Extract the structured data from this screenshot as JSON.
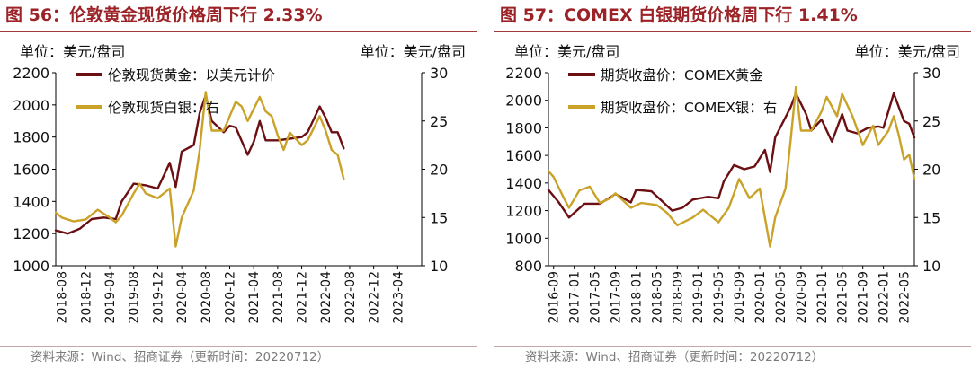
{
  "chart_data": [
    {
      "type": "line",
      "title": "图 56：伦敦黄金现货价格周下行 2.33%",
      "unit_left": "单位：美元/盘司",
      "unit_right": "单位：美元/盘司",
      "source": "资料来源：Wind、招商证券（更新时间：20220712）",
      "x_ticks": [
        "2018-08",
        "2018-12",
        "2019-04",
        "2019-08",
        "2019-12",
        "2020-04",
        "2020-08",
        "2020-12",
        "2021-04",
        "2021-08",
        "2021-12",
        "2022-04",
        "2022-08",
        "2022-12",
        "2023-04"
      ],
      "x_range": [
        "2018-07",
        "2023-08"
      ],
      "y_left": {
        "min": 1000,
        "max": 2200,
        "ticks": [
          1000,
          1200,
          1400,
          1600,
          1800,
          2000,
          2200
        ]
      },
      "y_right": {
        "min": 10,
        "max": 30,
        "ticks": [
          10,
          15,
          20,
          25,
          30
        ]
      },
      "grid": false,
      "legend_position": "top-left",
      "series": [
        {
          "name": "伦敦现货黄金：以美元计价",
          "axis": "left",
          "color": "#6b0f13",
          "points": [
            [
              "2018-07",
              1220
            ],
            [
              "2018-09",
              1200
            ],
            [
              "2018-11",
              1230
            ],
            [
              "2019-01",
              1290
            ],
            [
              "2019-03",
              1300
            ],
            [
              "2019-05",
              1290
            ],
            [
              "2019-06",
              1400
            ],
            [
              "2019-08",
              1510
            ],
            [
              "2019-10",
              1500
            ],
            [
              "2019-12",
              1480
            ],
            [
              "2020-01",
              1560
            ],
            [
              "2020-02",
              1640
            ],
            [
              "2020-03",
              1490
            ],
            [
              "2020-04",
              1710
            ],
            [
              "2020-06",
              1750
            ],
            [
              "2020-07",
              1950
            ],
            [
              "2020-08",
              2060
            ],
            [
              "2020-09",
              1900
            ],
            [
              "2020-11",
              1830
            ],
            [
              "2020-12",
              1870
            ],
            [
              "2021-01",
              1860
            ],
            [
              "2021-03",
              1690
            ],
            [
              "2021-04",
              1770
            ],
            [
              "2021-05",
              1900
            ],
            [
              "2021-06",
              1780
            ],
            [
              "2021-08",
              1780
            ],
            [
              "2021-10",
              1790
            ],
            [
              "2021-12",
              1800
            ],
            [
              "2022-01",
              1830
            ],
            [
              "2022-03",
              1990
            ],
            [
              "2022-04",
              1920
            ],
            [
              "2022-05",
              1830
            ],
            [
              "2022-06",
              1830
            ],
            [
              "2022-07",
              1730
            ]
          ]
        },
        {
          "name": "伦敦现货白银：右",
          "axis": "right",
          "color": "#c9a227",
          "points": [
            [
              "2018-07",
              15.5
            ],
            [
              "2018-08",
              15.0
            ],
            [
              "2018-10",
              14.6
            ],
            [
              "2018-12",
              14.8
            ],
            [
              "2019-02",
              15.8
            ],
            [
              "2019-04",
              15.0
            ],
            [
              "2019-05",
              14.5
            ],
            [
              "2019-06",
              15.2
            ],
            [
              "2019-08",
              17.5
            ],
            [
              "2019-09",
              18.5
            ],
            [
              "2019-10",
              17.5
            ],
            [
              "2019-12",
              17.0
            ],
            [
              "2020-02",
              18.0
            ],
            [
              "2020-03",
              12.0
            ],
            [
              "2020-04",
              15.0
            ],
            [
              "2020-06",
              17.8
            ],
            [
              "2020-07",
              22.0
            ],
            [
              "2020-08",
              28.0
            ],
            [
              "2020-09",
              24.0
            ],
            [
              "2020-11",
              24.0
            ],
            [
              "2020-12",
              25.5
            ],
            [
              "2021-01",
              27.0
            ],
            [
              "2021-02",
              26.5
            ],
            [
              "2021-03",
              25.0
            ],
            [
              "2021-05",
              27.5
            ],
            [
              "2021-06",
              26.0
            ],
            [
              "2021-07",
              25.5
            ],
            [
              "2021-08",
              23.5
            ],
            [
              "2021-09",
              22.0
            ],
            [
              "2021-10",
              23.8
            ],
            [
              "2021-12",
              22.5
            ],
            [
              "2022-01",
              23.0
            ],
            [
              "2022-03",
              25.5
            ],
            [
              "2022-04",
              24.0
            ],
            [
              "2022-05",
              22.0
            ],
            [
              "2022-06",
              21.5
            ],
            [
              "2022-07",
              19.0
            ]
          ]
        }
      ]
    },
    {
      "type": "line",
      "title": "图 57：COMEX 白银期货价格周下行 1.41%",
      "unit_left": "单位：美元/盘司",
      "unit_right": "单位：美元/盘司",
      "source": "资料来源：Wind、招商证券（更新时间：20220712）",
      "x_ticks": [
        "2016-09",
        "2017-01",
        "2017-05",
        "2017-09",
        "2018-01",
        "2018-05",
        "2018-09",
        "2019-01",
        "2019-05",
        "2019-09",
        "2020-01",
        "2020-05",
        "2020-09",
        "2021-01",
        "2021-05",
        "2021-09",
        "2022-01",
        "2022-05"
      ],
      "x_range": [
        "2016-08",
        "2022-07"
      ],
      "y_left": {
        "min": 800,
        "max": 2200,
        "ticks": [
          800,
          1000,
          1200,
          1400,
          1600,
          1800,
          2000,
          2200
        ]
      },
      "y_right": {
        "min": 10,
        "max": 30,
        "ticks": [
          10,
          15,
          20,
          25,
          30
        ]
      },
      "grid": false,
      "legend_position": "top-left",
      "series": [
        {
          "name": "期货收盘价：COMEX黄金",
          "axis": "left",
          "color": "#6b0f13",
          "points": [
            [
              "2016-08",
              1350
            ],
            [
              "2016-10",
              1260
            ],
            [
              "2016-12",
              1150
            ],
            [
              "2017-03",
              1250
            ],
            [
              "2017-06",
              1250
            ],
            [
              "2017-09",
              1320
            ],
            [
              "2017-12",
              1260
            ],
            [
              "2018-01",
              1350
            ],
            [
              "2018-04",
              1340
            ],
            [
              "2018-06",
              1270
            ],
            [
              "2018-08",
              1200
            ],
            [
              "2018-10",
              1220
            ],
            [
              "2018-12",
              1280
            ],
            [
              "2019-03",
              1300
            ],
            [
              "2019-05",
              1290
            ],
            [
              "2019-06",
              1410
            ],
            [
              "2019-08",
              1530
            ],
            [
              "2019-10",
              1500
            ],
            [
              "2019-12",
              1520
            ],
            [
              "2020-02",
              1640
            ],
            [
              "2020-03",
              1480
            ],
            [
              "2020-04",
              1730
            ],
            [
              "2020-07",
              1950
            ],
            [
              "2020-08",
              2050
            ],
            [
              "2020-10",
              1900
            ],
            [
              "2020-11",
              1780
            ],
            [
              "2021-01",
              1860
            ],
            [
              "2021-03",
              1700
            ],
            [
              "2021-05",
              1900
            ],
            [
              "2021-06",
              1780
            ],
            [
              "2021-08",
              1760
            ],
            [
              "2021-10",
              1800
            ],
            [
              "2021-12",
              1810
            ],
            [
              "2022-01",
              1800
            ],
            [
              "2022-03",
              2050
            ],
            [
              "2022-04",
              1950
            ],
            [
              "2022-05",
              1850
            ],
            [
              "2022-06",
              1830
            ],
            [
              "2022-07",
              1730
            ]
          ]
        },
        {
          "name": "期货收盘价：COMEX银：右",
          "axis": "right",
          "color": "#c9a227",
          "points": [
            [
              "2016-08",
              19.8
            ],
            [
              "2016-09",
              19.2
            ],
            [
              "2016-11",
              17.0
            ],
            [
              "2016-12",
              16.0
            ],
            [
              "2017-02",
              17.8
            ],
            [
              "2017-04",
              18.2
            ],
            [
              "2017-06",
              16.5
            ],
            [
              "2017-08",
              17.0
            ],
            [
              "2017-09",
              17.5
            ],
            [
              "2017-12",
              16.0
            ],
            [
              "2018-02",
              16.5
            ],
            [
              "2018-05",
              16.3
            ],
            [
              "2018-07",
              15.5
            ],
            [
              "2018-09",
              14.2
            ],
            [
              "2018-12",
              15.0
            ],
            [
              "2019-02",
              15.8
            ],
            [
              "2019-05",
              14.5
            ],
            [
              "2019-07",
              16.0
            ],
            [
              "2019-09",
              19.0
            ],
            [
              "2019-11",
              17.0
            ],
            [
              "2020-01",
              18.0
            ],
            [
              "2020-03",
              12.0
            ],
            [
              "2020-04",
              15.0
            ],
            [
              "2020-06",
              18.0
            ],
            [
              "2020-07",
              23.0
            ],
            [
              "2020-08",
              28.5
            ],
            [
              "2020-09",
              24.0
            ],
            [
              "2020-11",
              24.0
            ],
            [
              "2021-01",
              26.0
            ],
            [
              "2021-02",
              27.5
            ],
            [
              "2021-04",
              25.5
            ],
            [
              "2021-05",
              27.8
            ],
            [
              "2021-07",
              25.5
            ],
            [
              "2021-09",
              22.5
            ],
            [
              "2021-11",
              24.5
            ],
            [
              "2021-12",
              22.5
            ],
            [
              "2022-02",
              24.0
            ],
            [
              "2022-03",
              25.5
            ],
            [
              "2022-04",
              23.5
            ],
            [
              "2022-05",
              21.0
            ],
            [
              "2022-06",
              21.5
            ],
            [
              "2022-07",
              19.0
            ]
          ]
        }
      ]
    }
  ]
}
